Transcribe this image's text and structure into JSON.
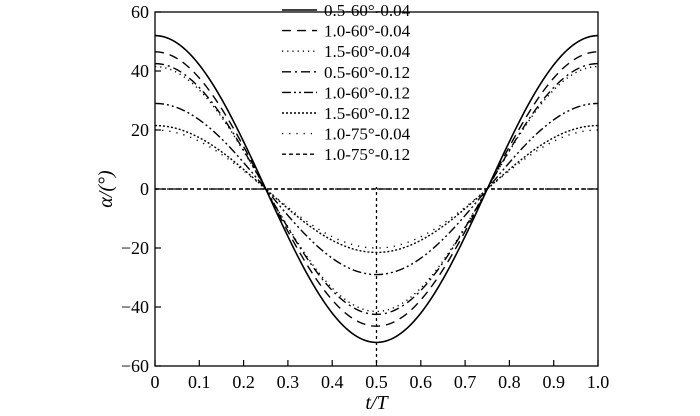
{
  "chart_data": {
    "type": "line",
    "title": "",
    "xlabel": "t/T",
    "ylabel": "α/(°)",
    "xlim": [
      0,
      1.0
    ],
    "ylim": [
      -60,
      60
    ],
    "x_ticks": [
      "0",
      "0.1",
      "0.2",
      "0.3",
      "0.4",
      "0.5",
      "0.6",
      "0.7",
      "0.8",
      "0.9",
      "1.0"
    ],
    "y_ticks": [
      "-60",
      "-40",
      "-20",
      "0",
      "20",
      "40",
      "60"
    ],
    "grid": false,
    "legend_position": "top-center",
    "reference_lines": {
      "vertical_x": 0.5,
      "horizontal_y": 0
    },
    "series": [
      {
        "name": "0.5-60°-0.04",
        "style": "solid",
        "amplitude": 52,
        "x": [
          0,
          0.125,
          0.25,
          0.375,
          0.5,
          0.625,
          0.75,
          0.875,
          1.0
        ],
        "values": [
          52,
          36.8,
          0,
          -36.8,
          -52,
          -36.8,
          0,
          36.8,
          52
        ]
      },
      {
        "name": "1.0-60°-0.04",
        "style": "dashed",
        "amplitude": 46.5,
        "x": [
          0,
          0.125,
          0.25,
          0.375,
          0.5,
          0.625,
          0.75,
          0.875,
          1.0
        ],
        "values": [
          46.5,
          32.9,
          0,
          -32.9,
          -46.5,
          -32.9,
          0,
          32.9,
          46.5
        ]
      },
      {
        "name": "1.5-60°-0.04",
        "style": "dotted",
        "amplitude": 41.5,
        "x": [
          0,
          0.125,
          0.25,
          0.375,
          0.5,
          0.625,
          0.75,
          0.875,
          1.0
        ],
        "values": [
          41.5,
          29.3,
          0,
          -29.3,
          -41.5,
          -29.3,
          0,
          29.3,
          41.5
        ]
      },
      {
        "name": "0.5-60°-0.12",
        "style": "dashdot",
        "amplitude": 42.5,
        "x": [
          0,
          0.125,
          0.25,
          0.375,
          0.5,
          0.625,
          0.75,
          0.875,
          1.0
        ],
        "values": [
          42.5,
          30.1,
          0,
          -30.1,
          -42.5,
          -30.1,
          0,
          30.1,
          42.5
        ]
      },
      {
        "name": "1.0-60°-0.12",
        "style": "dashdotdot",
        "amplitude": 29,
        "x": [
          0,
          0.125,
          0.25,
          0.375,
          0.5,
          0.625,
          0.75,
          0.875,
          1.0
        ],
        "values": [
          29,
          20.5,
          0,
          -20.5,
          -29,
          -20.5,
          0,
          20.5,
          29
        ]
      },
      {
        "name": "1.5-60°-0.12",
        "style": "densedot",
        "amplitude": 21.5,
        "x": [
          0,
          0.125,
          0.25,
          0.375,
          0.5,
          0.625,
          0.75,
          0.875,
          1.0
        ],
        "values": [
          21.5,
          15.2,
          0,
          -15.2,
          -21.5,
          -15.2,
          0,
          15.2,
          21.5
        ]
      },
      {
        "name": "1.0-75°-0.04",
        "style": "sparsedot",
        "amplitude": 20,
        "x": [
          0,
          0.125,
          0.25,
          0.375,
          0.5,
          0.625,
          0.75,
          0.875,
          1.0
        ],
        "values": [
          20,
          14.1,
          0,
          -14.1,
          -20,
          -14.1,
          0,
          14.1,
          20
        ]
      },
      {
        "name": "1.0-75°-0.12",
        "style": "shortdash",
        "amplitude": 0,
        "x": [
          0,
          0.125,
          0.25,
          0.375,
          0.5,
          0.625,
          0.75,
          0.875,
          1.0
        ],
        "values": [
          0,
          0,
          0,
          0,
          0,
          0,
          0,
          0,
          0
        ]
      }
    ]
  }
}
